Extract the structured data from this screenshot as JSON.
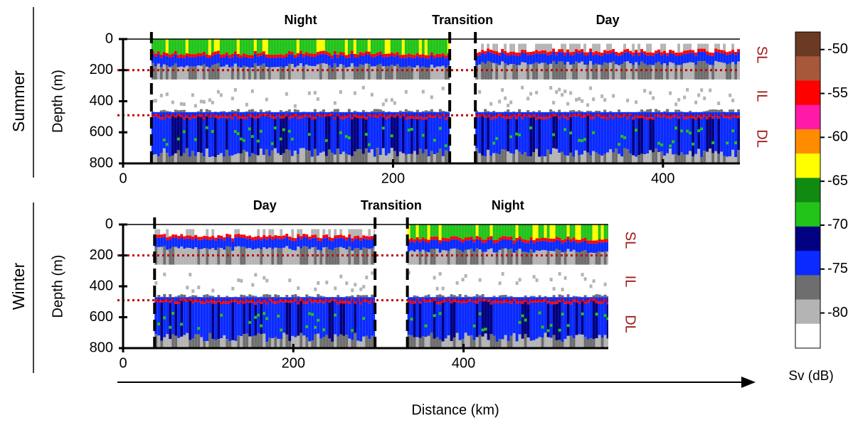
{
  "axis_label": "Distance (km)",
  "colorbar": {
    "label": "Sv (dB)",
    "lim": [
      -84,
      -48
    ],
    "ticks": [
      -50,
      -55,
      -60,
      -65,
      -70,
      -75,
      -80
    ],
    "colors": [
      "#6b3a22",
      "#a8583a",
      "#ff0000",
      "#ff1aa8",
      "#ff8c00",
      "#ffff00",
      "#118a11",
      "#22c41a",
      "#000080",
      "#0a2aff",
      "#6e6e6e",
      "#b4b4b4",
      "#ffffff"
    ]
  },
  "chart_data": [
    {
      "type": "echogram",
      "title": "Summer",
      "ylabel": "Depth (m)",
      "xlim": [
        0,
        457
      ],
      "ylim": [
        800,
        0
      ],
      "xticks": [
        0,
        200,
        400
      ],
      "yticks": [
        0,
        200,
        400,
        600,
        800
      ],
      "dividers": [
        21,
        242,
        261
      ],
      "periods": [
        "Night",
        "Transition",
        "Day"
      ],
      "layer_boundaries": [
        200,
        490
      ],
      "layers": [
        "SL",
        "IL",
        "DL"
      ]
    },
    {
      "type": "echogram",
      "title": "Winter",
      "ylabel": "Depth (m)",
      "xlim": [
        0,
        570
      ],
      "ylim": [
        800,
        0
      ],
      "xticks": [
        0,
        200,
        400
      ],
      "yticks": [
        0,
        200,
        400,
        600,
        800
      ],
      "dividers": [
        37,
        296,
        334
      ],
      "periods": [
        "Day",
        "Transition",
        "Night"
      ],
      "layer_boundaries": [
        200,
        490
      ],
      "layers": [
        "SL",
        "IL",
        "DL"
      ]
    }
  ]
}
